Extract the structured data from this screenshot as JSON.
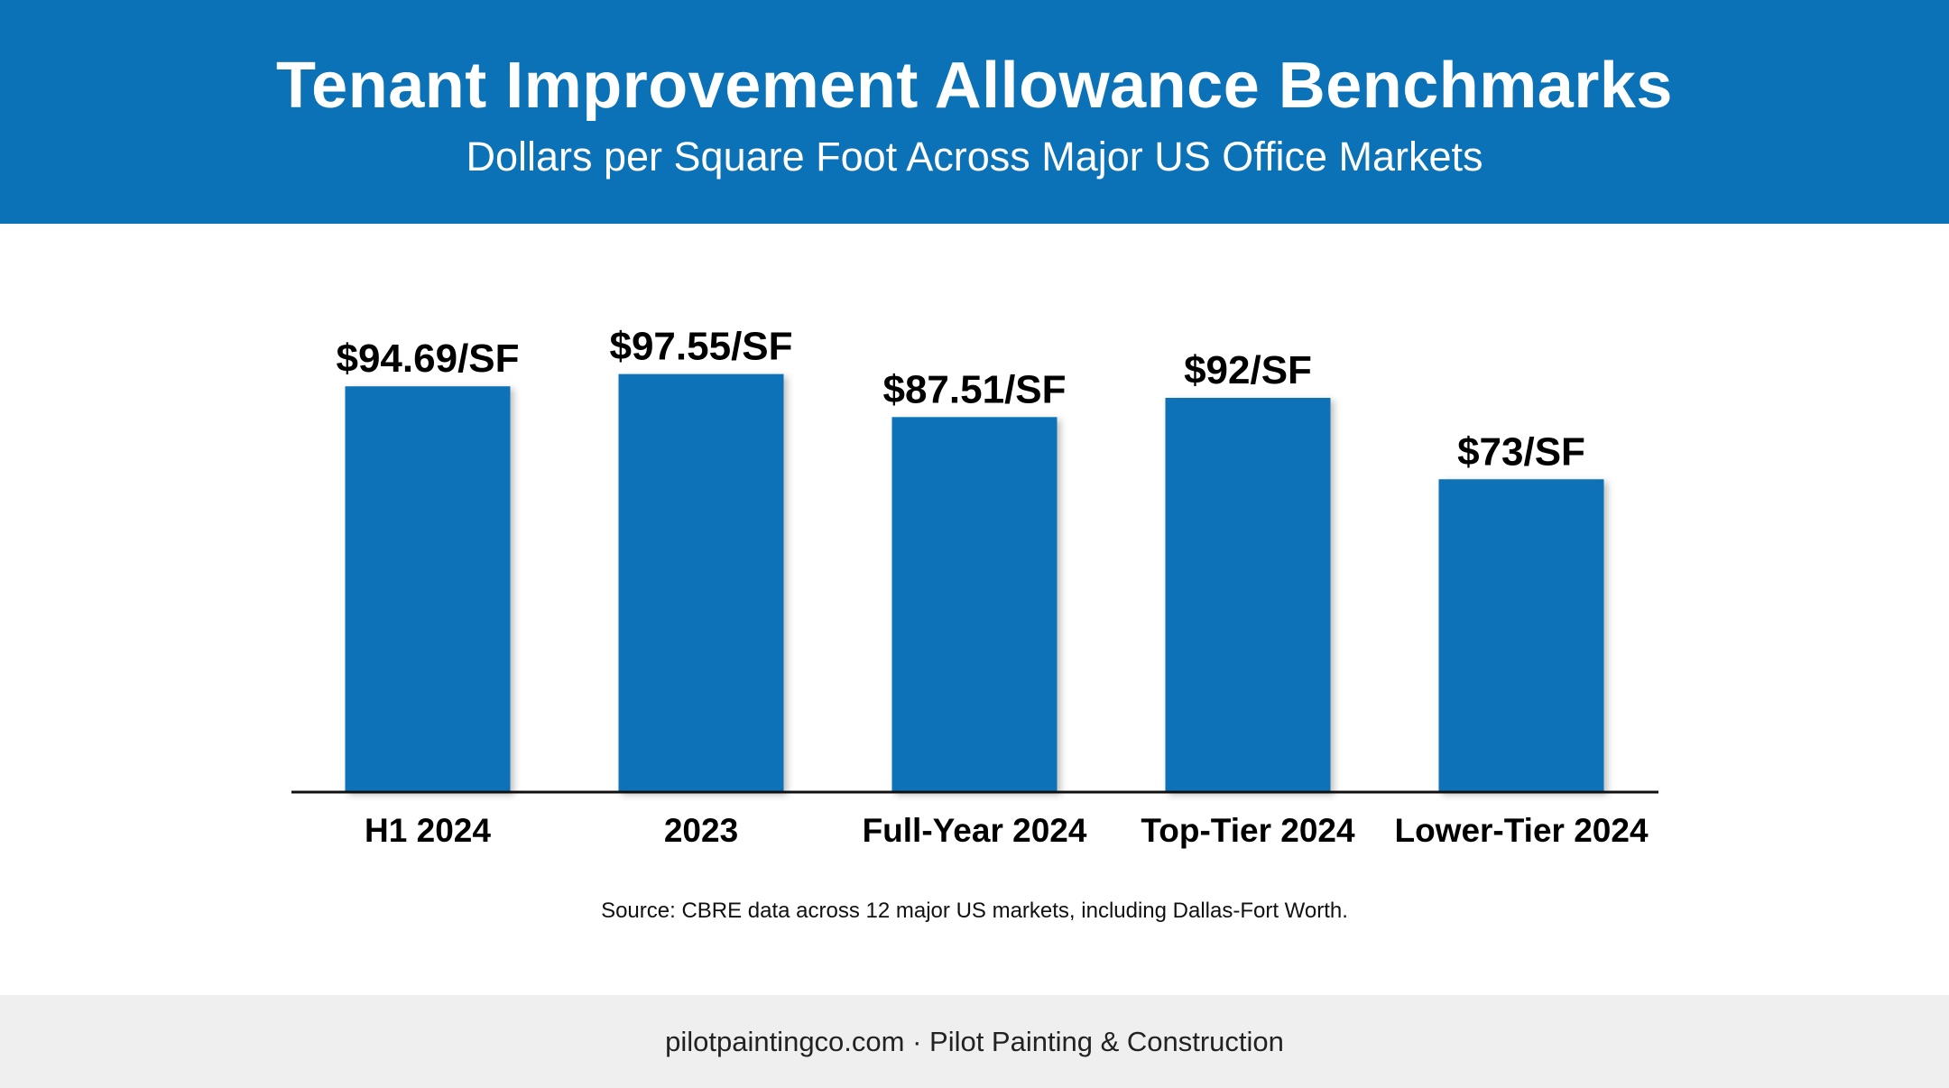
{
  "header": {
    "title": "Tenant Improvement Allowance Benchmarks",
    "subtitle": "Dollars per Square Foot Across Major US Office Markets"
  },
  "chart_data": {
    "type": "bar",
    "categories": [
      "H1 2024",
      "2023",
      "Full-Year 2024",
      "Top-Tier 2024",
      "Lower-Tier 2024"
    ],
    "values": [
      94.69,
      97.55,
      87.51,
      92,
      73
    ],
    "data_labels": [
      "$94.69/SF",
      "$97.55/SF",
      "$87.51/SF",
      "$92/SF",
      "$73/SF"
    ],
    "title": "Tenant Improvement Allowance Benchmarks",
    "subtitle": "Dollars per Square Foot Across Major US Office Markets",
    "ylim": [
      0,
      100
    ],
    "grid": false,
    "bar_color": "#0b72b8"
  },
  "source_note": "Source: CBRE data across 12 major US markets, including Dallas-Fort Worth.",
  "footer": {
    "text": "pilotpaintingco.com · Pilot Painting & Construction"
  },
  "colors": {
    "brand_blue": "#0b72b8",
    "footer_bg": "#efefef"
  }
}
